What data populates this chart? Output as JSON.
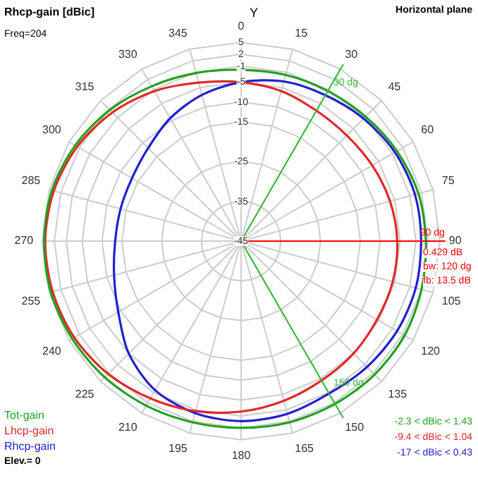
{
  "chart_data": {
    "type": "radar",
    "title": "Rhcp-gain [dBic]",
    "categories": [
      "0",
      "15",
      "30",
      "45",
      "60",
      "75",
      "90",
      "105",
      "120",
      "135",
      "150",
      "165",
      "180",
      "195",
      "210",
      "225",
      "240",
      "255",
      "270",
      "285",
      "300",
      "315",
      "330",
      "345"
    ],
    "series": [
      {
        "name": "Tot-gain",
        "color": "#22a022",
        "values": [
          -1.9,
          -1.7,
          -1.4,
          -0.7,
          0.3,
          1.2,
          1.5,
          2.0,
          2.5,
          2.5,
          2.3,
          2.2,
          2.0,
          2.2,
          2.8,
          3.5,
          4.1,
          4.6,
          4.6,
          4.3,
          3.2,
          1.7,
          0.0,
          -1.2
        ]
      },
      {
        "name": "Lhcp-gain",
        "color": "#e02828",
        "values": [
          -5.0,
          -5.9,
          -7.1,
          -7.4,
          -6.9,
          -6.2,
          -5.7,
          -5.5,
          -5.5,
          -5.0,
          -4.5,
          -3.4,
          -2.1,
          -0.7,
          0.7,
          2.3,
          3.5,
          4.1,
          4.3,
          3.8,
          2.6,
          0.8,
          -1.4,
          -3.7
        ]
      },
      {
        "name": "Rhcp-gain",
        "color": "#2020d0",
        "values": [
          -5.0,
          -3.4,
          -2.6,
          -1.4,
          -0.3,
          0.3,
          0.3,
          0.5,
          0.3,
          -0.2,
          -0.7,
          0.0,
          0.3,
          -0.2,
          -1.7,
          -5.0,
          -9.3,
          -11.9,
          -13.3,
          -13.6,
          -13.3,
          -11.9,
          -9.3,
          -6.9
        ]
      }
    ],
    "ylim": [
      -45,
      5
    ],
    "yticks": [
      -45,
      -35,
      -25,
      -15,
      -10,
      -5,
      -1,
      2,
      5
    ],
    "grid": true,
    "legend": "bottom left",
    "marker": "none",
    "annotations": [
      "Freq=204",
      "Horizontal plane",
      "Y",
      "0.429 dB",
      "bw: 120 dg",
      "fb: 13.5 dB",
      "-2.3 < dBic < 1.43",
      "-9.4 < dBic < 1.04",
      "-17 < dBic < 0.43",
      "Elev.= 0",
      {
        "text": "30 dg",
        "x": "30"
      },
      {
        "text": "150 dg",
        "x": "150"
      },
      {
        "text": "90 dg",
        "x": "90"
      }
    ]
  }
}
